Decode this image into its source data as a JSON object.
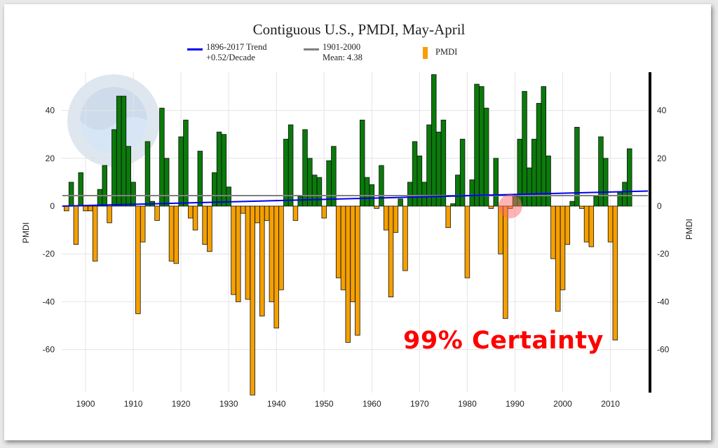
{
  "chart_data": {
    "type": "bar",
    "title": "Contiguous U.S., PMDI, May-April",
    "ylabel": "PMDI",
    "ylabel_right": "PMDI",
    "ylim": [
      -78,
      56
    ],
    "xlim": [
      1895,
      2018
    ],
    "yticks": [
      40,
      20,
      0,
      -20,
      -40,
      -60
    ],
    "xticks": [
      1900,
      1910,
      1920,
      1930,
      1940,
      1950,
      1960,
      1970,
      1980,
      1990,
      2000,
      2010
    ],
    "legend": {
      "trend": [
        "1896-2017 Trend",
        "+0.52/Decade"
      ],
      "mean": [
        "1901-2000",
        "Mean: 4.38"
      ],
      "series": "PMDI"
    },
    "colors": {
      "positive": "#0a7a0a",
      "negative": "#f5a000",
      "trend": "#0000ee",
      "mean": "#808080"
    },
    "mean": 4.38,
    "trend": {
      "start_year": 1896,
      "end_year": 2017,
      "start_value": 0,
      "end_value": 6.3
    },
    "years_start": 1896,
    "values": [
      -2,
      10,
      -16,
      14,
      -2,
      -2,
      -23,
      7,
      17,
      -7,
      32,
      46,
      46,
      25,
      10,
      -45,
      -15,
      27,
      2,
      -6,
      41,
      20,
      -23,
      -24,
      29,
      36,
      -5,
      -10,
      23,
      -16,
      -19,
      14,
      31,
      30,
      8,
      -37,
      -40,
      -3,
      -39,
      -79,
      -7,
      -46,
      -6,
      -40,
      -51,
      -35,
      28,
      34,
      -6,
      4,
      32,
      20,
      13,
      12,
      -5,
      19,
      25,
      -30,
      -35,
      -57,
      -40,
      -54,
      36,
      12,
      9,
      -1,
      17,
      -10,
      -38,
      -11,
      3,
      -27,
      10,
      27,
      21,
      10,
      34,
      55,
      31,
      36,
      -9,
      1,
      13,
      28,
      -30,
      11,
      51,
      50,
      41,
      -1,
      20,
      -20,
      -47,
      -1,
      4,
      28,
      48,
      16,
      28,
      43,
      50,
      21,
      -22,
      -44,
      -35,
      -16,
      2,
      33,
      -1,
      -15,
      -17,
      4,
      29,
      20,
      -15,
      -56,
      6,
      10,
      24
    ],
    "annotation": "99% Certainty",
    "annotation_year": 1989
  }
}
